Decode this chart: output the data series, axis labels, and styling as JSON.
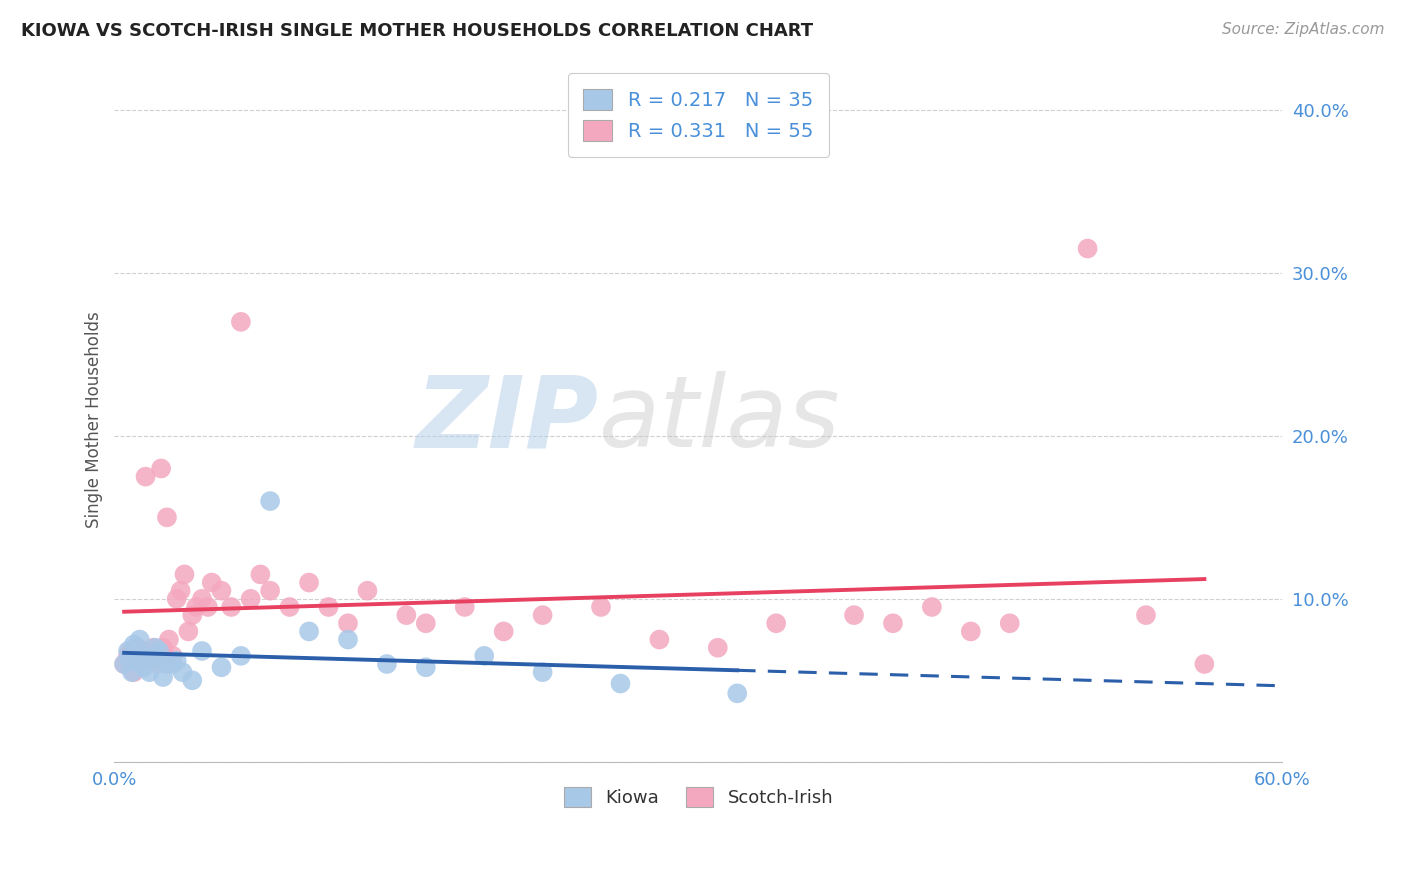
{
  "title": "KIOWA VS SCOTCH-IRISH SINGLE MOTHER HOUSEHOLDS CORRELATION CHART",
  "source": "Source: ZipAtlas.com",
  "ylabel": "Single Mother Households",
  "xlim": [
    0.0,
    0.6
  ],
  "ylim": [
    0.0,
    0.42
  ],
  "yticks": [
    0.0,
    0.1,
    0.2,
    0.3,
    0.4
  ],
  "ytick_labels": [
    "",
    "10.0%",
    "20.0%",
    "30.0%",
    "40.0%"
  ],
  "xticks": [
    0.0,
    0.1,
    0.2,
    0.3,
    0.4,
    0.5,
    0.6
  ],
  "background_color": "#ffffff",
  "grid_color": "#d0d0d0",
  "watermark_line1": "ZIP",
  "watermark_line2": "atlas",
  "kiowa_color": "#a8c8e8",
  "scotch_irish_color": "#f4a8c0",
  "kiowa_line_color": "#2b5faa",
  "scotch_irish_line_color": "#e84060",
  "kiowa_R": 0.217,
  "kiowa_N": 35,
  "scotch_irish_R": 0.331,
  "scotch_irish_N": 55,
  "kiowa_x": [
    0.005,
    0.007,
    0.008,
    0.009,
    0.01,
    0.01,
    0.011,
    0.012,
    0.013,
    0.014,
    0.015,
    0.016,
    0.018,
    0.02,
    0.021,
    0.022,
    0.023,
    0.025,
    0.027,
    0.03,
    0.032,
    0.035,
    0.04,
    0.045,
    0.055,
    0.065,
    0.08,
    0.1,
    0.12,
    0.14,
    0.16,
    0.19,
    0.22,
    0.26,
    0.32
  ],
  "kiowa_y": [
    0.06,
    0.068,
    0.062,
    0.055,
    0.072,
    0.065,
    0.07,
    0.068,
    0.075,
    0.065,
    0.058,
    0.06,
    0.055,
    0.065,
    0.07,
    0.063,
    0.068,
    0.052,
    0.06,
    0.06,
    0.062,
    0.055,
    0.05,
    0.068,
    0.058,
    0.065,
    0.16,
    0.08,
    0.075,
    0.06,
    0.058,
    0.065,
    0.055,
    0.048,
    0.042
  ],
  "scotch_irish_x": [
    0.005,
    0.007,
    0.008,
    0.01,
    0.012,
    0.013,
    0.015,
    0.016,
    0.018,
    0.02,
    0.022,
    0.023,
    0.024,
    0.025,
    0.026,
    0.027,
    0.028,
    0.03,
    0.032,
    0.034,
    0.036,
    0.038,
    0.04,
    0.042,
    0.045,
    0.048,
    0.05,
    0.055,
    0.06,
    0.065,
    0.07,
    0.075,
    0.08,
    0.09,
    0.1,
    0.11,
    0.12,
    0.13,
    0.15,
    0.16,
    0.18,
    0.2,
    0.22,
    0.25,
    0.28,
    0.31,
    0.34,
    0.38,
    0.4,
    0.42,
    0.44,
    0.46,
    0.5,
    0.53,
    0.56
  ],
  "scotch_irish_y": [
    0.06,
    0.065,
    0.068,
    0.055,
    0.07,
    0.062,
    0.068,
    0.175,
    0.065,
    0.07,
    0.06,
    0.065,
    0.18,
    0.07,
    0.065,
    0.15,
    0.075,
    0.065,
    0.1,
    0.105,
    0.115,
    0.08,
    0.09,
    0.095,
    0.1,
    0.095,
    0.11,
    0.105,
    0.095,
    0.27,
    0.1,
    0.115,
    0.105,
    0.095,
    0.11,
    0.095,
    0.085,
    0.105,
    0.09,
    0.085,
    0.095,
    0.08,
    0.09,
    0.095,
    0.075,
    0.07,
    0.085,
    0.09,
    0.085,
    0.095,
    0.08,
    0.085,
    0.315,
    0.09,
    0.06
  ]
}
